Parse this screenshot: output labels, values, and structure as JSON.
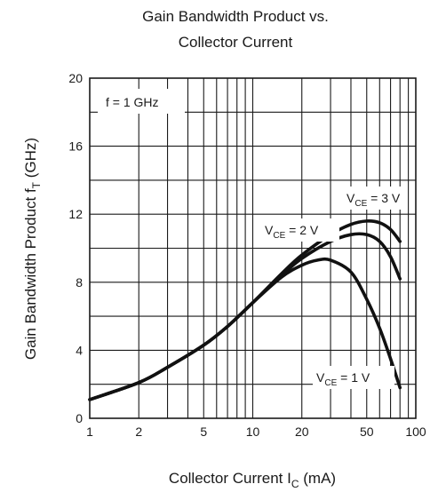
{
  "chart_data": {
    "type": "line",
    "title": "Gain Bandwidth Product vs. Collector Current",
    "title_lines": [
      "Gain Bandwidth Product vs.",
      "Collector Current"
    ],
    "xlabel": "Collector Current I",
    "xlabel_sub": "C",
    "xlabel_unit": " (mA)",
    "ylabel": "Gain Bandwidth Product f",
    "ylabel_sub": "T",
    "ylabel_unit": " (GHz)",
    "x_scale": "log",
    "xlim": [
      1,
      100
    ],
    "ylim": [
      0,
      20
    ],
    "grid": true,
    "x_ticks": [
      1,
      2,
      5,
      10,
      20,
      50,
      100
    ],
    "x_tick_labels": [
      "1",
      "2",
      "5",
      "10",
      "20",
      "50",
      "100"
    ],
    "y_ticks": [
      0,
      4,
      8,
      12,
      16,
      20
    ],
    "y_tick_labels": [
      "0",
      "4",
      "8",
      "12",
      "16",
      "20"
    ],
    "condition_label": "f = 1 GHz",
    "series": [
      {
        "name": "VCE = 1 V",
        "label_main": "V",
        "label_sub": "CE",
        "label_rest": " = 1 V",
        "x": [
          1,
          2,
          3,
          5,
          7,
          10,
          15,
          20,
          25,
          30,
          40,
          50,
          60,
          70,
          80
        ],
        "y": [
          1.1,
          2.1,
          3.0,
          4.3,
          5.4,
          6.8,
          8.3,
          9.0,
          9.3,
          9.3,
          8.6,
          7.0,
          5.3,
          3.5,
          1.8
        ]
      },
      {
        "name": "VCE = 2 V",
        "label_main": "V",
        "label_sub": "CE",
        "label_rest": " = 2 V",
        "x": [
          1,
          2,
          3,
          5,
          7,
          10,
          15,
          20,
          30,
          40,
          50,
          60,
          70,
          80
        ],
        "y": [
          1.1,
          2.1,
          3.0,
          4.3,
          5.4,
          6.8,
          8.4,
          9.4,
          10.4,
          10.8,
          10.8,
          10.4,
          9.5,
          8.2
        ]
      },
      {
        "name": "VCE = 3 V",
        "label_main": "V",
        "label_sub": "CE",
        "label_rest": " = 3 V",
        "x": [
          1,
          2,
          3,
          5,
          7,
          10,
          15,
          20,
          30,
          40,
          50,
          60,
          70,
          80
        ],
        "y": [
          1.1,
          2.1,
          3.0,
          4.3,
          5.4,
          6.8,
          8.5,
          9.6,
          10.8,
          11.4,
          11.6,
          11.5,
          11.1,
          10.4
        ]
      }
    ]
  }
}
